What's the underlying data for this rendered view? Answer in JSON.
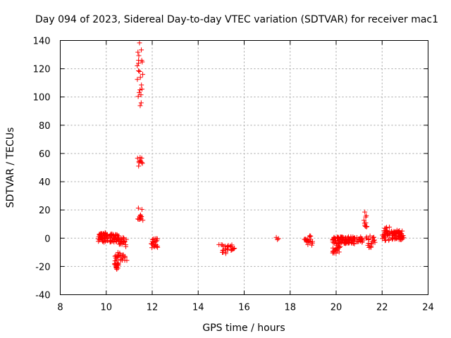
{
  "chart_data": {
    "type": "scatter",
    "title": "Day 094 of 2023, Sidereal Day-to-day VTEC variation (SDTVAR) for receiver mac1",
    "xlabel": "GPS time / hours",
    "ylabel": "SDTVAR / TECUs",
    "xlim": [
      8,
      24
    ],
    "ylim": [
      -40,
      140
    ],
    "xticks": [
      "8",
      "10",
      "12",
      "14",
      "16",
      "18",
      "20",
      "22",
      "24"
    ],
    "yticks": [
      "-40",
      "-20",
      "0",
      "20",
      "40",
      "60",
      "80",
      "100",
      "120",
      "140"
    ],
    "grid": true,
    "marker": "plus",
    "color": "#ff0000",
    "series": [
      {
        "name": "SDTVAR",
        "clusters": [
          {
            "x": [
              9.65,
              10.1
            ],
            "y": [
              -3,
              4
            ],
            "n": 45
          },
          {
            "x": [
              10.1,
              10.6
            ],
            "y": [
              -3,
              3
            ],
            "n": 40
          },
          {
            "x": [
              10.55,
              10.9
            ],
            "y": [
              -6,
              1
            ],
            "n": 18
          },
          {
            "x": [
              10.35,
              10.55
            ],
            "y": [
              -22,
              -12
            ],
            "n": 25
          },
          {
            "x": [
              10.5,
              10.9
            ],
            "y": [
              -16,
              -10
            ],
            "n": 15
          },
          {
            "x": [
              11.32,
              11.6
            ],
            "y": [
              92,
              140
            ],
            "n": 22
          },
          {
            "x": [
              11.35,
              11.6
            ],
            "y": [
              51,
              58
            ],
            "n": 10
          },
          {
            "x": [
              11.35,
              11.6
            ],
            "y": [
              12,
              22
            ],
            "n": 12
          },
          {
            "x": [
              11.95,
              12.25
            ],
            "y": [
              -7,
              0
            ],
            "n": 22
          },
          {
            "x": [
              14.9,
              15.6
            ],
            "y": [
              -11,
              -4
            ],
            "n": 25
          },
          {
            "x": [
              17.38,
              17.5
            ],
            "y": [
              -3,
              2
            ],
            "n": 3
          },
          {
            "x": [
              18.6,
              19.0
            ],
            "y": [
              -5,
              2
            ],
            "n": 20
          },
          {
            "x": [
              19.8,
              20.2
            ],
            "y": [
              -11,
              1
            ],
            "n": 50
          },
          {
            "x": [
              20.1,
              20.9
            ],
            "y": [
              -4,
              1
            ],
            "n": 60
          },
          {
            "x": [
              20.9,
              21.2
            ],
            "y": [
              -3,
              1
            ],
            "n": 15
          },
          {
            "x": [
              21.2,
              21.35
            ],
            "y": [
              8,
              20
            ],
            "n": 10
          },
          {
            "x": [
              21.3,
              21.7
            ],
            "y": [
              -7,
              2
            ],
            "n": 20
          },
          {
            "x": [
              22.0,
              22.35
            ],
            "y": [
              -2,
              8
            ],
            "n": 30
          },
          {
            "x": [
              22.35,
              22.95
            ],
            "y": [
              -1,
              6
            ],
            "n": 60
          }
        ]
      }
    ]
  }
}
